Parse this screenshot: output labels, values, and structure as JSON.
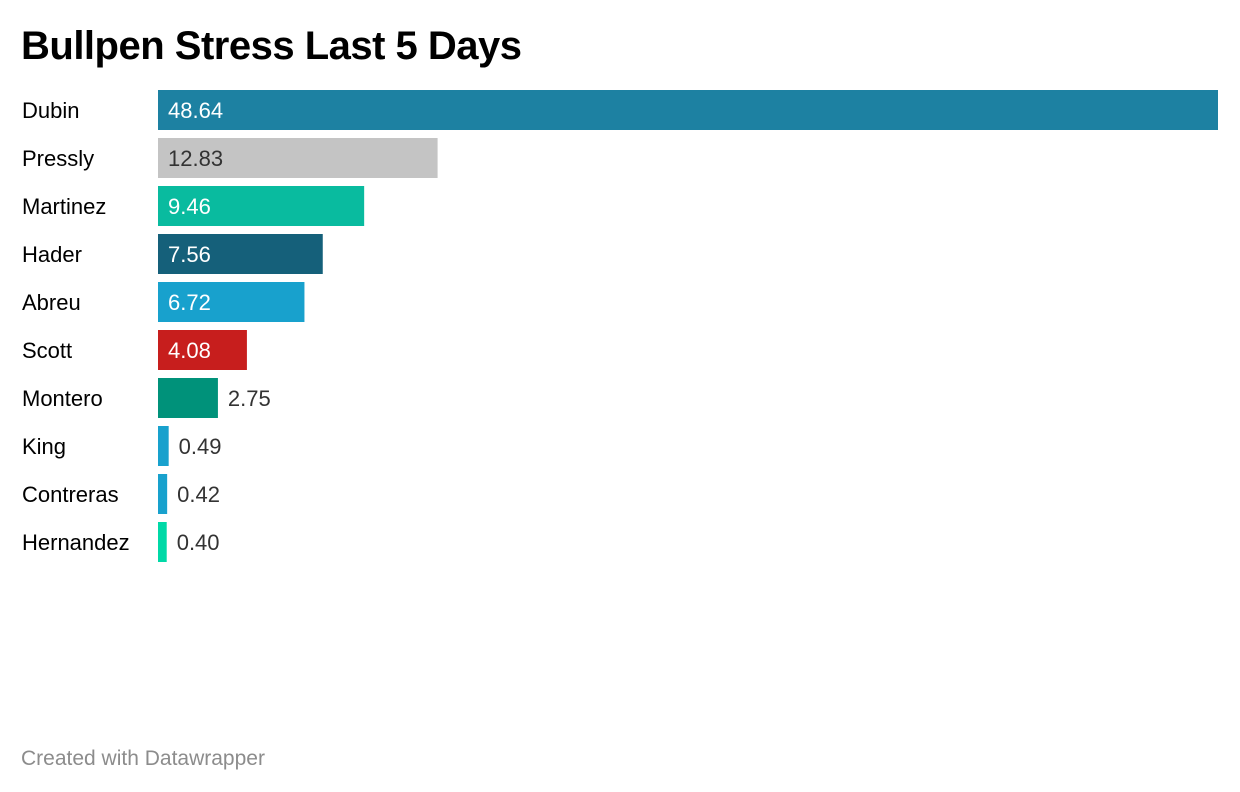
{
  "chart_data": {
    "type": "bar",
    "orientation": "horizontal",
    "title": "Bullpen Stress Last 5 Days",
    "categories": [
      "Dubin",
      "Pressly",
      "Martinez",
      "Hader",
      "Abreu",
      "Scott",
      "Montero",
      "King",
      "Contreras",
      "Hernandez"
    ],
    "values": [
      48.64,
      12.83,
      9.46,
      7.56,
      6.72,
      4.08,
      2.75,
      0.49,
      0.42,
      0.4
    ],
    "value_labels": [
      "48.64",
      "12.83",
      "9.46",
      "7.56",
      "6.72",
      "4.08",
      "2.75",
      "0.49",
      "0.42",
      "0.40"
    ],
    "colors": [
      "#1d81a2",
      "#c4c4c4",
      "#09bb9f",
      "#15607a",
      "#18a1cd",
      "#c71e1d",
      "#00927a",
      "#18a1cd",
      "#18a1cd",
      "#00d9a7"
    ],
    "label_colors": [
      "#ffffff",
      "#333333",
      "#ffffff",
      "#ffffff",
      "#ffffff",
      "#ffffff",
      "#333333",
      "#333333",
      "#333333",
      "#333333"
    ],
    "xlim": [
      0,
      48.64
    ],
    "grid": false,
    "legend": "none"
  },
  "footer": {
    "credit": "Created with Datawrapper"
  }
}
